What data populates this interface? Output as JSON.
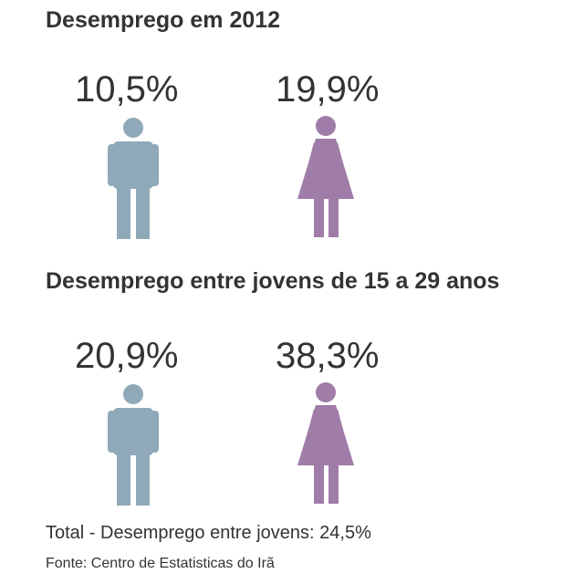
{
  "section_2012": {
    "title": "Desemprego em 2012",
    "male_value": "10,5%",
    "female_value": "19,9%"
  },
  "section_youth": {
    "title": "Desemprego entre jovens de 15 a 29 anos",
    "male_value": "20,9%",
    "female_value": "38,3%"
  },
  "total_note": "Total - Desemprego entre jovens: 24,5%",
  "source": "Fonte: Centro de Estatisticas do Irã",
  "colors": {
    "male": "#8FA9B8",
    "female": "#A07CA8"
  },
  "icons": {
    "male": "man-icon",
    "female": "woman-icon"
  }
}
